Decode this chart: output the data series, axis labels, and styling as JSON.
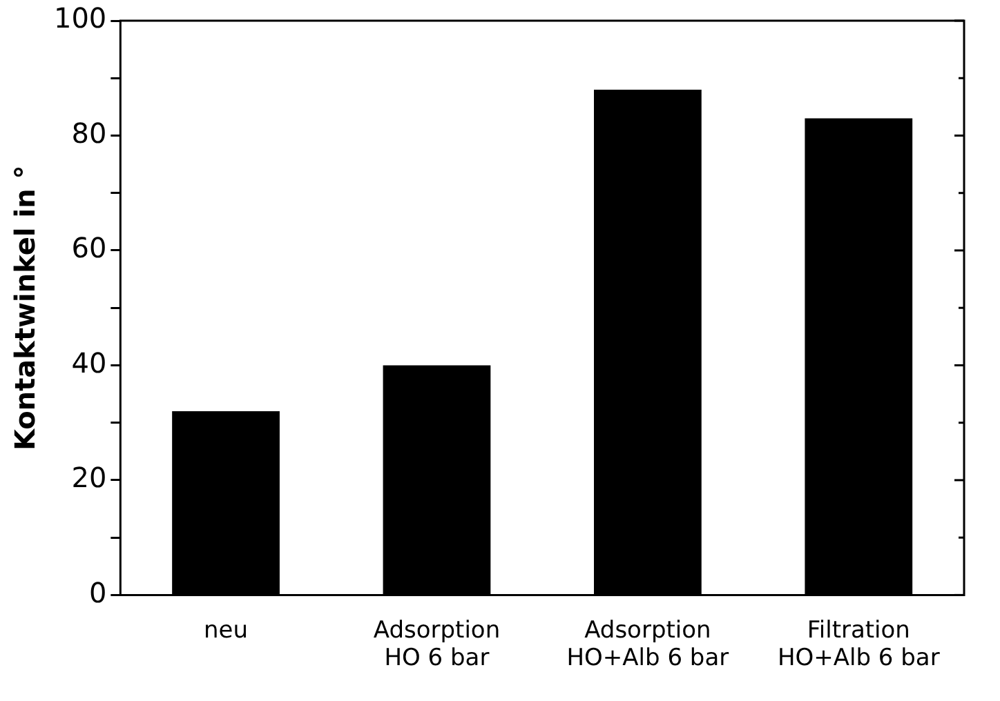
{
  "chart_data": {
    "type": "bar",
    "ylabel": "Kontaktwinkel in °",
    "categories": [
      "neu",
      "Adsorption\nHO 6 bar",
      "Adsorption\nHO+Alb 6 bar",
      "Filtration\nHO+Alb 6 bar"
    ],
    "values": [
      32,
      40,
      88,
      83
    ],
    "color": "#000000",
    "ylim": [
      0,
      100
    ],
    "yticks": [
      0,
      {
        "value": 10,
        "label": null
      },
      20,
      {
        "value": 30,
        "label": null
      },
      40,
      {
        "value": 50,
        "label": null
      },
      60,
      {
        "value": 70,
        "label": null
      },
      80,
      {
        "value": 90,
        "label": null
      },
      100
    ],
    "grid": false,
    "legend": false
  }
}
